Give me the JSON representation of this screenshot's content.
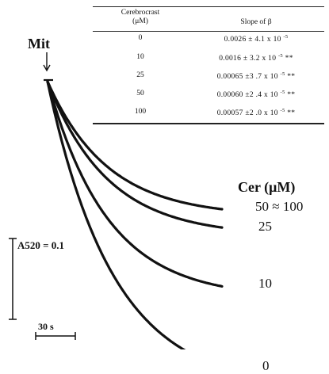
{
  "table": {
    "headers": {
      "col1_line1": "Cerebrocrast",
      "col1_line2": "(μM)",
      "col2": "Slope of β"
    },
    "rows": [
      {
        "conc": "0",
        "slope": "0.0026 ± 4.1 x 10",
        "exp": "-5",
        "sig": ""
      },
      {
        "conc": "10",
        "slope": "0.0016 ± 3.2 x 10",
        "exp": "-5",
        "sig": "**"
      },
      {
        "conc": "25",
        "slope": "0.00065 ±3 .7 x 10",
        "exp": "-5",
        "sig": "**"
      },
      {
        "conc": "50",
        "slope": "0.00060 ±2 .4 x 10",
        "exp": "-5",
        "sig": "**"
      },
      {
        "conc": "100",
        "slope": "0.00057 ±2 .0 x 10",
        "exp": "-5",
        "sig": "**"
      }
    ]
  },
  "annotations": {
    "mit_label": "Mit",
    "cer_title": "Cer (μM)",
    "scale_absorbance": "A520 = 0.1",
    "scale_time": "30 s"
  },
  "chart_data": {
    "type": "line",
    "title": "",
    "xlabel": "",
    "ylabel": "",
    "x_unit": "s",
    "x_range_s": [
      0,
      132
    ],
    "absorbance_scale_bar": 0.1,
    "time_scale_bar_s": 30,
    "series": [
      {
        "name": "50 ≈ 100",
        "k_per_s": 0.022,
        "plateau_drop_A520": 0.167
      },
      {
        "name": "25",
        "k_per_s": 0.022,
        "plateau_drop_A520": 0.191
      },
      {
        "name": "10",
        "k_per_s": 0.022,
        "plateau_drop_A520": 0.268
      },
      {
        "name": "0",
        "k_per_s": 0.02,
        "plateau_drop_A520": 0.38
      }
    ]
  }
}
